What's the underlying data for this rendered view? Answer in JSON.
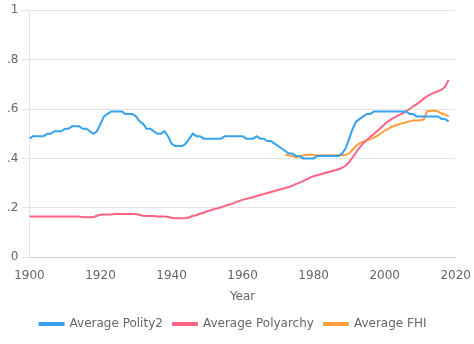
{
  "chart_data": {
    "type": "line",
    "xlabel": "Year",
    "xlim": [
      1900,
      2020
    ],
    "ylim": [
      0,
      1
    ],
    "xticks": [
      1900,
      1920,
      1940,
      1960,
      1980,
      2000,
      2020
    ],
    "yticks": [
      0,
      {
        "value": 0.2,
        "label": ".2"
      },
      {
        "value": 0.4,
        "label": ".4"
      },
      {
        "value": 0.6,
        "label": ".6"
      },
      {
        "value": 0.8,
        "label": ".8"
      },
      1
    ],
    "grid": "y",
    "legend": "bottom",
    "x": [
      1900,
      1901,
      1902,
      1903,
      1904,
      1905,
      1906,
      1907,
      1908,
      1909,
      1910,
      1911,
      1912,
      1913,
      1914,
      1915,
      1916,
      1917,
      1918,
      1919,
      1920,
      1921,
      1922,
      1923,
      1924,
      1925,
      1926,
      1927,
      1928,
      1929,
      1930,
      1931,
      1932,
      1933,
      1934,
      1935,
      1936,
      1937,
      1938,
      1939,
      1940,
      1941,
      1942,
      1943,
      1944,
      1945,
      1946,
      1947,
      1948,
      1949,
      1950,
      1951,
      1952,
      1953,
      1954,
      1955,
      1956,
      1957,
      1958,
      1959,
      1960,
      1961,
      1962,
      1963,
      1964,
      1965,
      1966,
      1967,
      1968,
      1969,
      1970,
      1971,
      1972,
      1973,
      1974,
      1975,
      1976,
      1977,
      1978,
      1979,
      1980,
      1981,
      1982,
      1983,
      1984,
      1985,
      1986,
      1987,
      1988,
      1989,
      1990,
      1991,
      1992,
      1993,
      1994,
      1995,
      1996,
      1997,
      1998,
      1999,
      2000,
      2001,
      2002,
      2003,
      2004,
      2005,
      2006,
      2007,
      2008,
      2009,
      2010,
      2011,
      2012,
      2013,
      2014,
      2015,
      2016,
      2017,
      2018
    ],
    "series": [
      {
        "name": "Average Polity2",
        "values": [
          0.48,
          0.49,
          0.49,
          0.49,
          0.49,
          0.5,
          0.5,
          0.51,
          0.51,
          0.51,
          0.52,
          0.52,
          0.53,
          0.53,
          0.53,
          0.52,
          0.52,
          0.51,
          0.5,
          0.51,
          0.54,
          0.57,
          0.58,
          0.59,
          0.59,
          0.59,
          0.59,
          0.58,
          0.58,
          0.58,
          0.57,
          0.55,
          0.54,
          0.52,
          0.52,
          0.51,
          0.5,
          0.5,
          0.51,
          0.49,
          0.46,
          0.45,
          0.45,
          0.45,
          0.46,
          0.48,
          0.5,
          0.49,
          0.49,
          0.48,
          0.48,
          0.48,
          0.48,
          0.48,
          0.48,
          0.49,
          0.49,
          0.49,
          0.49,
          0.49,
          0.49,
          0.48,
          0.48,
          0.48,
          0.49,
          0.48,
          0.48,
          0.47,
          0.47,
          0.46,
          0.45,
          0.44,
          0.43,
          0.42,
          0.42,
          0.41,
          0.41,
          0.4,
          0.4,
          0.4,
          0.4,
          0.41,
          0.41,
          0.41,
          0.41,
          0.41,
          0.41,
          0.41,
          0.42,
          0.44,
          0.48,
          0.52,
          0.55,
          0.56,
          0.57,
          0.58,
          0.58,
          0.59,
          0.59,
          0.59,
          0.59,
          0.59,
          0.59,
          0.59,
          0.59,
          0.59,
          0.59,
          0.58,
          0.58,
          0.57,
          0.57,
          0.57,
          0.57,
          0.57,
          0.57,
          0.57,
          0.56,
          0.56,
          0.55
        ]
      },
      {
        "name": "Average Polyarchy",
        "values": [
          0.165,
          0.165,
          0.165,
          0.165,
          0.165,
          0.165,
          0.165,
          0.165,
          0.165,
          0.165,
          0.165,
          0.165,
          0.165,
          0.165,
          0.165,
          0.162,
          0.162,
          0.162,
          0.162,
          0.168,
          0.172,
          0.173,
          0.173,
          0.173,
          0.175,
          0.175,
          0.175,
          0.175,
          0.175,
          0.175,
          0.175,
          0.171,
          0.168,
          0.167,
          0.167,
          0.167,
          0.165,
          0.165,
          0.165,
          0.163,
          0.16,
          0.158,
          0.158,
          0.158,
          0.158,
          0.162,
          0.168,
          0.17,
          0.176,
          0.18,
          0.186,
          0.19,
          0.195,
          0.198,
          0.202,
          0.208,
          0.212,
          0.216,
          0.222,
          0.228,
          0.232,
          0.236,
          0.24,
          0.243,
          0.248,
          0.252,
          0.256,
          0.26,
          0.264,
          0.268,
          0.272,
          0.276,
          0.28,
          0.284,
          0.29,
          0.296,
          0.302,
          0.308,
          0.315,
          0.322,
          0.328,
          0.332,
          0.336,
          0.34,
          0.344,
          0.348,
          0.352,
          0.356,
          0.362,
          0.37,
          0.385,
          0.405,
          0.425,
          0.445,
          0.462,
          0.475,
          0.488,
          0.5,
          0.512,
          0.525,
          0.538,
          0.55,
          0.56,
          0.568,
          0.575,
          0.582,
          0.59,
          0.6,
          0.61,
          0.62,
          0.63,
          0.642,
          0.652,
          0.66,
          0.666,
          0.672,
          0.678,
          0.69,
          0.718
        ]
      },
      {
        "name": "Average FHI",
        "values": [
          null,
          null,
          null,
          null,
          null,
          null,
          null,
          null,
          null,
          null,
          null,
          null,
          null,
          null,
          null,
          null,
          null,
          null,
          null,
          null,
          null,
          null,
          null,
          null,
          null,
          null,
          null,
          null,
          null,
          null,
          null,
          null,
          null,
          null,
          null,
          null,
          null,
          null,
          null,
          null,
          null,
          null,
          null,
          null,
          null,
          null,
          null,
          null,
          null,
          null,
          null,
          null,
          null,
          null,
          null,
          null,
          null,
          null,
          null,
          null,
          null,
          null,
          null,
          null,
          null,
          null,
          null,
          null,
          null,
          null,
          null,
          null,
          0.415,
          0.413,
          0.41,
          0.405,
          0.408,
          0.412,
          0.415,
          0.416,
          0.414,
          0.413,
          0.413,
          0.413,
          0.413,
          0.413,
          0.413,
          0.413,
          0.413,
          0.415,
          0.42,
          0.436,
          0.452,
          0.462,
          0.468,
          0.473,
          0.478,
          0.484,
          0.492,
          0.502,
          0.512,
          0.52,
          0.528,
          0.533,
          0.538,
          0.542,
          0.546,
          0.55,
          0.553,
          0.553,
          0.554,
          0.558,
          0.592,
          0.592,
          0.594,
          0.59,
          0.582,
          0.578,
          0.57
        ]
      }
    ]
  }
}
